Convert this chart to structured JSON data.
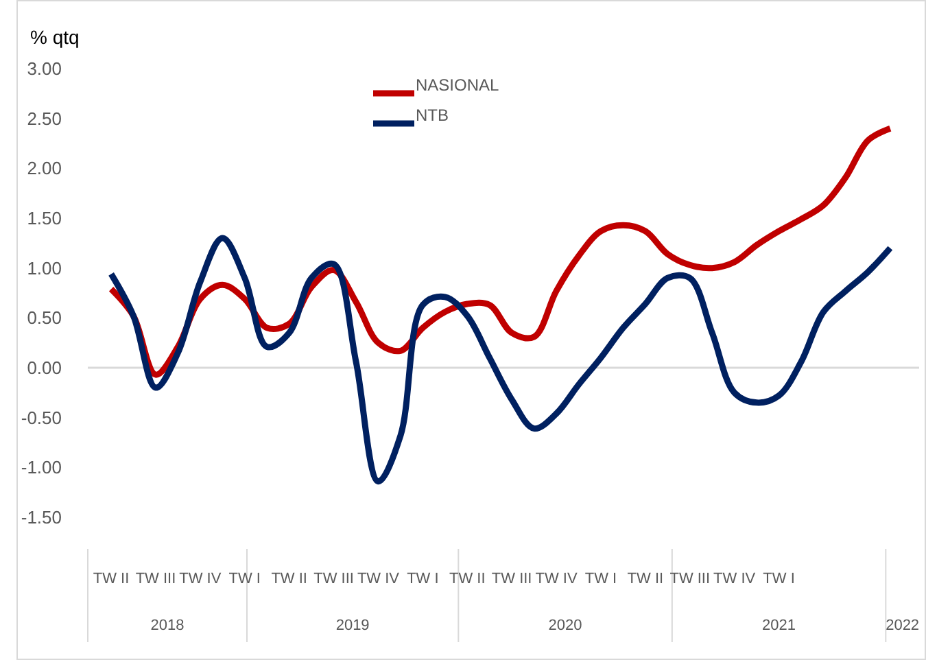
{
  "chart_data": {
    "type": "line",
    "ylabel": "% qtq",
    "categories": [
      "TW II",
      null,
      "TW III",
      null,
      "TW IV",
      null,
      "TW I",
      null,
      "TW II",
      null,
      "TW III",
      null,
      "TW IV",
      null,
      "TW I",
      null,
      "TW II",
      null,
      "TW III",
      null,
      "TW IV",
      null,
      "TW I",
      null,
      "TW II",
      null,
      "TW III",
      null,
      "TW IV",
      null,
      "TW I",
      null,
      null,
      null,
      null,
      null
    ],
    "series": [
      {
        "name": "NASIONAL",
        "color": "#c00000",
        "values": [
          0.79,
          0.52,
          -0.07,
          0.21,
          0.69,
          0.83,
          0.69,
          0.4,
          0.44,
          0.81,
          0.98,
          0.66,
          0.25,
          0.17,
          0.4,
          0.56,
          0.64,
          0.63,
          0.35,
          0.31,
          0.77,
          1.12,
          1.37,
          1.43,
          1.37,
          1.14,
          1.03,
          1.0,
          1.06,
          1.23,
          1.37,
          1.49,
          1.63,
          1.91,
          2.28,
          2.4
        ]
      },
      {
        "name": "NTB",
        "color": "#002060",
        "values": [
          0.94,
          0.52,
          -0.2,
          0.15,
          0.86,
          1.3,
          0.9,
          0.21,
          0.35,
          0.9,
          1.04,
          0.06,
          -1.14,
          -0.68,
          0.63,
          0.71,
          0.52,
          0.1,
          -0.32,
          -0.61,
          -0.46,
          -0.17,
          0.1,
          0.4,
          0.64,
          0.9,
          0.9,
          0.35,
          -0.25,
          -0.35,
          -0.28,
          0.06,
          0.56,
          0.77,
          0.96,
          1.2
        ]
      }
    ],
    "ylim": [
      -1.5,
      3
    ],
    "ref_lines": [
      {
        "axis": "y",
        "value": 0,
        "color": "#d9d9d9"
      }
    ],
    "yticks": [
      {
        "value": 3,
        "label": "3.00"
      },
      {
        "value": 2.5,
        "label": "2.50"
      },
      {
        "value": 2,
        "label": "2.00"
      },
      {
        "value": 1.5,
        "label": "1.50"
      },
      {
        "value": 1,
        "label": "1.00"
      },
      {
        "value": 0.5,
        "label": "0.50"
      },
      {
        "value": 0,
        "label": "0.00"
      },
      {
        "value": -0.5,
        "label": "-0.50"
      },
      {
        "value": -1,
        "label": "-1.00"
      },
      {
        "value": -1.5,
        "label": "-1.50"
      }
    ],
    "annotations": [
      "2018",
      "2019",
      "2020",
      "2021",
      "2022"
    ],
    "legend": "top",
    "grid": false,
    "line_style": "solid",
    "marker": "none"
  }
}
